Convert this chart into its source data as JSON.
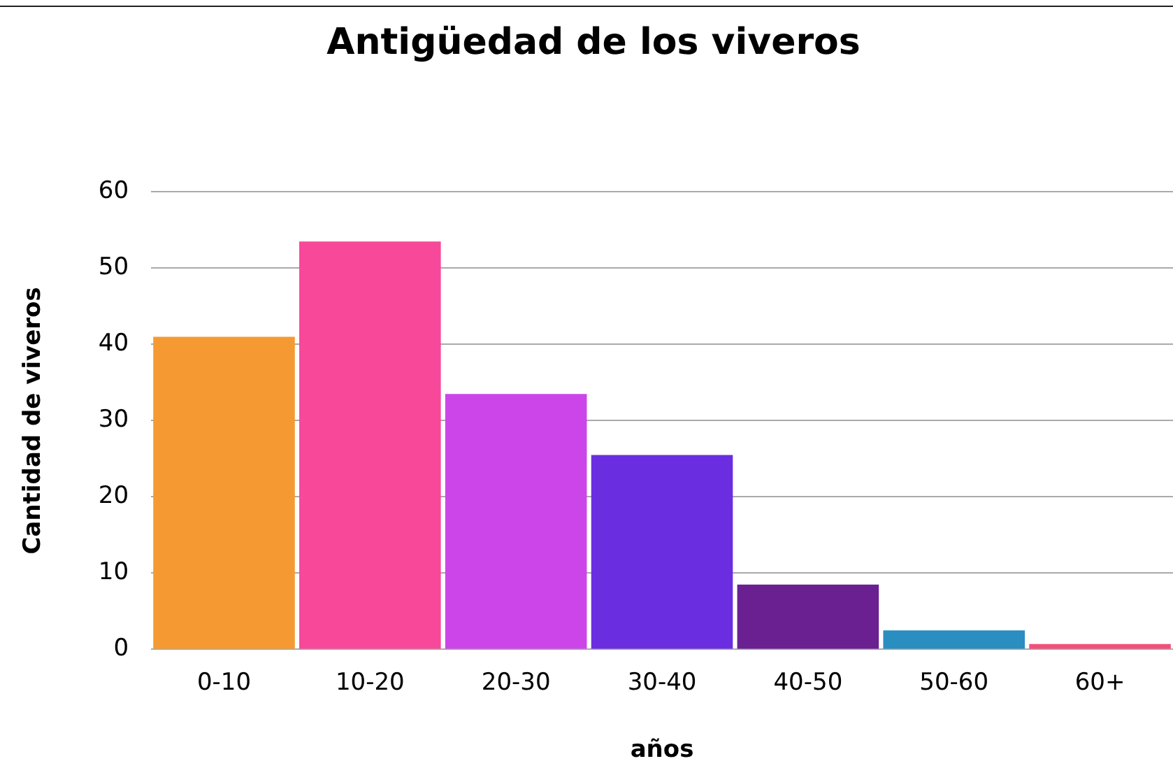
{
  "chart_data": {
    "type": "bar",
    "title": "Antigüedad de los viveros",
    "xlabel": "años",
    "ylabel": "Cantidad de viveros",
    "categories": [
      "0-10",
      "10-20",
      "20-30",
      "30-40",
      "40-50",
      "50-60",
      "60+"
    ],
    "values": [
      41,
      53.5,
      33.5,
      25.5,
      8.5,
      2.5,
      0.7
    ],
    "colors": [
      "#f59a32",
      "#f7489a",
      "#cc45e8",
      "#6a2ee0",
      "#6a2090",
      "#2a8ec0",
      "#f0507a"
    ],
    "ylim": [
      0,
      60
    ],
    "yticks": [
      0,
      10,
      20,
      30,
      40,
      50,
      60
    ],
    "grid": "y",
    "legend": false
  }
}
